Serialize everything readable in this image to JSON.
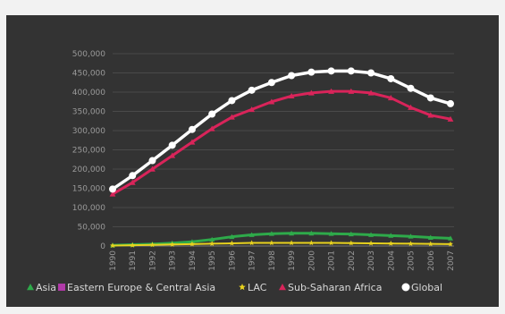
{
  "chart_data": {
    "type": "line",
    "title": "",
    "xlabel": "",
    "ylabel": "",
    "x": [
      "1990",
      "1991",
      "1992",
      "1993",
      "1994",
      "1995",
      "1996",
      "1997",
      "1998",
      "1999",
      "2000",
      "2001",
      "2002",
      "2003",
      "2004",
      "2005",
      "2006",
      "2007"
    ],
    "ylim": [
      0,
      500000
    ],
    "yticks": [
      0,
      50000,
      100000,
      150000,
      200000,
      250000,
      300000,
      350000,
      400000,
      450000,
      500000
    ],
    "ytick_labels": [
      "0",
      "50,000",
      "100,000",
      "150,000",
      "200,000",
      "250,000",
      "300,000",
      "350,000",
      "400,000",
      "450,000",
      "500,000"
    ],
    "grid": true,
    "legend_position": "bottom",
    "series": [
      {
        "name": "Asia",
        "color": "#2eaa4a",
        "marker": "triangle",
        "values": [
          2000,
          3500,
          5000,
          7500,
          11000,
          17000,
          24000,
          29000,
          32000,
          33000,
          33000,
          32000,
          31000,
          29000,
          27000,
          25000,
          22000,
          20000
        ]
      },
      {
        "name": "Eastern Europe & Central Asia",
        "color": "#b03aa8",
        "marker": "square",
        "values": [
          0,
          0,
          0,
          0,
          0,
          0,
          0,
          0,
          0,
          0,
          0,
          0,
          0,
          0,
          0,
          0,
          0,
          0
        ]
      },
      {
        "name": "LAC",
        "color": "#e8d21e",
        "marker": "star",
        "values": [
          1000,
          2000,
          3000,
          4000,
          5000,
          6000,
          7000,
          8000,
          8000,
          8000,
          8000,
          8000,
          7500,
          7000,
          6500,
          6000,
          5500,
          5000
        ]
      },
      {
        "name": "Sub-Saharan Africa",
        "color": "#d9245a",
        "marker": "triangle",
        "values": [
          135000,
          165000,
          200000,
          235000,
          270000,
          305000,
          335000,
          355000,
          375000,
          390000,
          398000,
          402000,
          402000,
          398000,
          385000,
          360000,
          340000,
          330000
        ]
      },
      {
        "name": "Global",
        "color": "#ffffff",
        "marker": "circle",
        "values": [
          148000,
          183000,
          222000,
          262000,
          303000,
          343000,
          378000,
          405000,
          425000,
          443000,
          452000,
          455000,
          455000,
          450000,
          435000,
          410000,
          385000,
          370000
        ]
      }
    ]
  }
}
